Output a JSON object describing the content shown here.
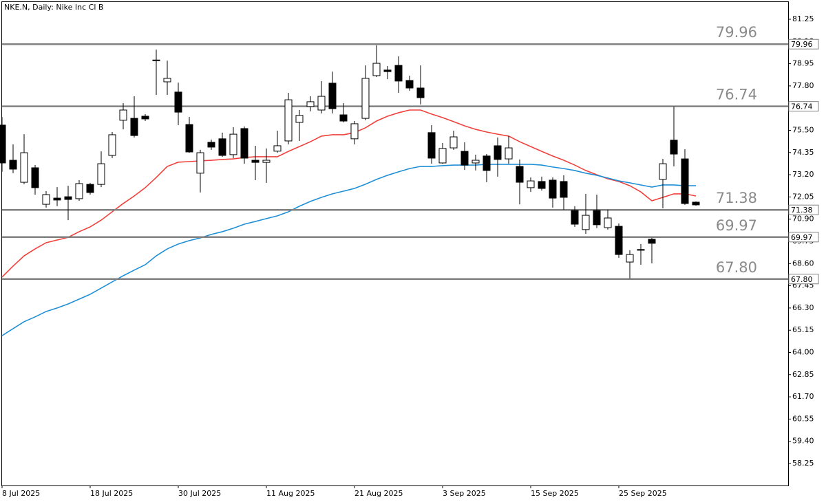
{
  "chart_data": {
    "type": "candlestick",
    "title": "NKE.N, Daily:  Nike Inc Cl B",
    "categories": [
      "8 Jul 2025",
      null,
      null,
      null,
      null,
      null,
      null,
      null,
      "18 Jul 2025",
      null,
      null,
      null,
      null,
      null,
      null,
      null,
      "30 Jul 2025",
      null,
      null,
      null,
      null,
      null,
      null,
      null,
      "11 Aug 2025",
      null,
      null,
      null,
      null,
      null,
      null,
      null,
      "21 Aug 2025",
      null,
      null,
      null,
      null,
      null,
      null,
      null,
      "3 Sep 2025",
      null,
      null,
      null,
      null,
      null,
      null,
      null,
      "15 Sep 2025",
      null,
      null,
      null,
      null,
      null,
      null,
      null,
      "25 Sep 2025",
      null,
      null,
      null,
      null,
      null,
      null,
      null
    ],
    "open": [
      75.77,
      73.95,
      72.81,
      73.56,
      71.67,
      71.99,
      72.06,
      71.96,
      72.7,
      72.7,
      74.2,
      76.02,
      76.12,
      76.23,
      79.1,
      78.01,
      77.48,
      75.8,
      73.28,
      74.88,
      75.06,
      74.24,
      75.59,
      73.95,
      73.84,
      74.42,
      74.95,
      75.91,
      76.73,
      76.55,
      77.94,
      76.3,
      75.06,
      76.12,
      78.33,
      78.62,
      78.86,
      78.08,
      77.69,
      75.38,
      73.81,
      74.59,
      74.41,
      73.81,
      74.17,
      74.7,
      74.02,
      73.63,
      72.53,
      72.85,
      72.92,
      72.85,
      71.35,
      70.36,
      71.35,
      70.46,
      70.53,
      68.68,
      69.33,
      69.86,
      72.96,
      74.99,
      74.02,
      71.78
    ],
    "high": [
      76.19,
      74.77,
      75.3,
      73.7,
      72.35,
      72.56,
      72.63,
      72.92,
      72.78,
      74.41,
      75.41,
      76.91,
      77.26,
      76.34,
      79.68,
      79.11,
      77.97,
      76.19,
      74.49,
      75.02,
      75.38,
      75.66,
      75.7,
      74.7,
      74.56,
      75.48,
      77.44,
      76.55,
      77.26,
      78.05,
      78.54,
      76.91,
      75.98,
      78.86,
      79.9,
      78.83,
      79.33,
      78.33,
      78.86,
      75.77,
      74.84,
      75.48,
      74.88,
      74.24,
      74.27,
      75.13,
      75.2,
      73.99,
      73.06,
      73.1,
      73.06,
      73.17,
      71.57,
      72.21,
      72.17,
      71.39,
      70.68,
      69.29,
      69.61,
      69.93,
      74.02,
      76.73,
      74.52,
      71.82
    ],
    "low": [
      73.35,
      73.28,
      72.71,
      72.17,
      71.5,
      71.57,
      70.85,
      71.85,
      72.17,
      72.56,
      74.06,
      75.55,
      75.13,
      75.98,
      77.33,
      77.33,
      75.77,
      74.34,
      72.28,
      74.49,
      74.13,
      74.06,
      73.77,
      72.92,
      72.78,
      74.34,
      74.77,
      74.95,
      76.48,
      76.37,
      76.37,
      75.91,
      74.77,
      76.02,
      78.26,
      78.15,
      77.44,
      77.55,
      76.84,
      73.77,
      73.77,
      74.49,
      73.45,
      73.42,
      72.81,
      73.1,
      73.77,
      71.67,
      72.31,
      72.38,
      71.5,
      71.39,
      70.5,
      70.14,
      70.43,
      70.36,
      68.9,
      67.83,
      68.54,
      68.61,
      71.46,
      73.63,
      71.64,
      71.6
    ],
    "close": [
      73.81,
      73.49,
      74.34,
      72.53,
      72.17,
      71.89,
      71.92,
      72.74,
      72.28,
      73.77,
      75.27,
      76.55,
      75.23,
      76.09,
      79.14,
      78.19,
      76.44,
      74.38,
      74.34,
      74.63,
      74.2,
      75.3,
      74.06,
      73.84,
      73.95,
      74.7,
      77.08,
      76.27,
      76.98,
      77.26,
      76.62,
      75.98,
      75.84,
      78.19,
      78.97,
      78.54,
      78.05,
      77.69,
      77.19,
      74.06,
      74.56,
      75.16,
      73.7,
      73.95,
      73.42,
      73.99,
      74.59,
      72.81,
      72.88,
      72.49,
      71.99,
      72.03,
      70.64,
      71.1,
      70.61,
      70.96,
      69.07,
      69.07,
      69.29,
      69.65,
      73.77,
      74.27,
      71.71,
      71.64
    ],
    "up_color": "#ffffff",
    "down_color": "#000000",
    "wick_color": "#000000",
    "moving_averages": [
      {
        "color": "#f0403c",
        "values": [
          67.9,
          68.47,
          69.0,
          69.36,
          69.68,
          69.82,
          69.96,
          70.25,
          70.5,
          70.85,
          71.28,
          71.71,
          72.1,
          72.53,
          73.06,
          73.63,
          73.85,
          73.88,
          73.92,
          73.95,
          73.99,
          74.02,
          74.09,
          74.13,
          74.13,
          74.13,
          74.41,
          74.66,
          74.91,
          75.2,
          75.27,
          75.27,
          75.38,
          75.63,
          75.98,
          76.23,
          76.41,
          76.55,
          76.55,
          76.34,
          76.16,
          75.95,
          75.73,
          75.55,
          75.41,
          75.3,
          75.2,
          74.91,
          74.66,
          74.41,
          74.17,
          73.95,
          73.7,
          73.42,
          73.2,
          72.99,
          72.85,
          72.63,
          72.31,
          71.85,
          72.03,
          72.21,
          72.21,
          72.1
        ]
      },
      {
        "color": "#1e8fd6",
        "values": [
          64.87,
          65.23,
          65.59,
          65.84,
          66.12,
          66.3,
          66.51,
          66.76,
          67.01,
          67.33,
          67.65,
          67.97,
          68.26,
          68.54,
          69.0,
          69.36,
          69.61,
          69.79,
          69.93,
          70.11,
          70.25,
          70.43,
          70.64,
          70.78,
          70.93,
          71.07,
          71.28,
          71.57,
          71.82,
          72.03,
          72.21,
          72.35,
          72.49,
          72.71,
          72.96,
          73.17,
          73.35,
          73.52,
          73.63,
          73.63,
          73.67,
          73.7,
          73.7,
          73.7,
          73.74,
          73.74,
          73.74,
          73.74,
          73.74,
          73.7,
          73.6,
          73.52,
          73.42,
          73.28,
          73.17,
          73.03,
          72.88,
          72.78,
          72.67,
          72.56,
          72.67,
          72.67,
          72.63,
          72.63
        ]
      }
    ],
    "levels": [
      79.96,
      76.74,
      71.38,
      69.97,
      {
        "value": 67.8,
        "label": "67.80"
      }
    ],
    "level_color": "#808080",
    "ylim": [
      57.11,
      82.14
    ],
    "yticks": [
      81.25,
      {
        "value": 80.1,
        "label": "80.10"
      },
      78.95,
      {
        "value": 77.8,
        "label": "77.80"
      },
      76.65,
      {
        "value": 75.5,
        "label": "75.50"
      },
      74.35,
      {
        "value": 73.2,
        "label": "73.20"
      },
      72.05,
      {
        "value": 70.9,
        "label": "70.90"
      },
      69.75,
      {
        "value": 68.6,
        "label": "68.60"
      },
      67.45,
      {
        "value": 66.3,
        "label": "66.30"
      },
      65.15,
      {
        "value": 64,
        "label": "64.00"
      },
      62.85,
      {
        "value": 61.7,
        "label": "61.70"
      },
      60.55,
      {
        "value": 59.4,
        "label": "59.40"
      },
      58.25
    ]
  }
}
